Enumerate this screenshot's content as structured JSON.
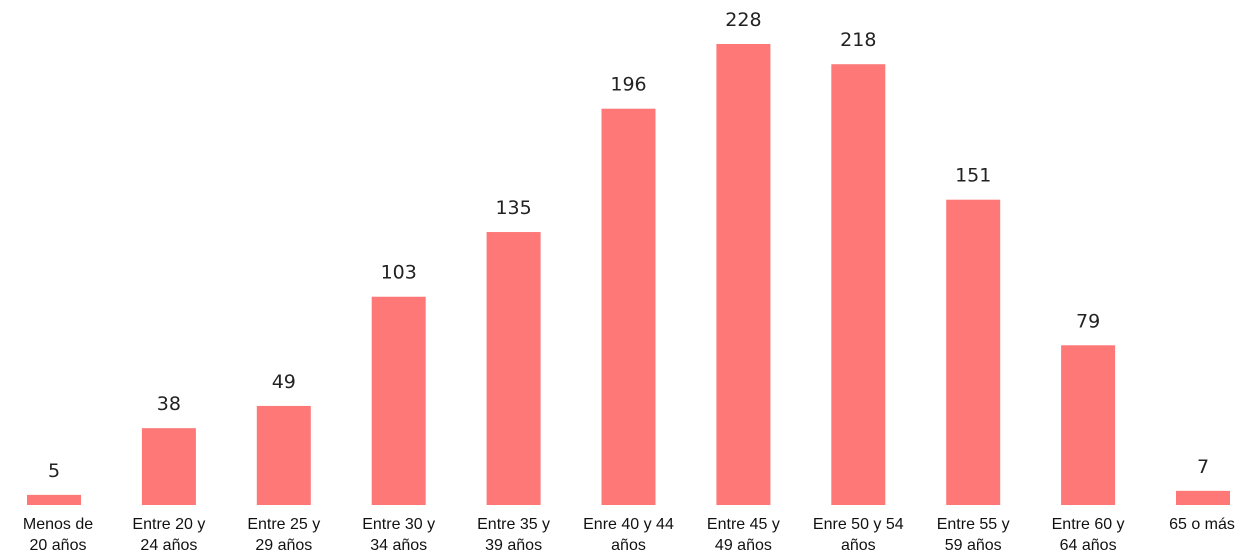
{
  "chart_data": {
    "type": "bar",
    "categories": [
      "Menos de\n20 años",
      "Entre 20 y\n24 años",
      "Entre 25 y\n29 años",
      "Entre 30 y\n34 años",
      "Entre 35 y\n39 años",
      "Enre 40 y 44\naños",
      "Entre 45 y\n49 años",
      "Enre 50 y 54\naños",
      "Entre 55 y\n59 años",
      "Entre 60 y\n64 años",
      "65 o más"
    ],
    "values": [
      5,
      38,
      49,
      103,
      135,
      196,
      228,
      218,
      151,
      79,
      7
    ],
    "color": "#ff7878"
  }
}
